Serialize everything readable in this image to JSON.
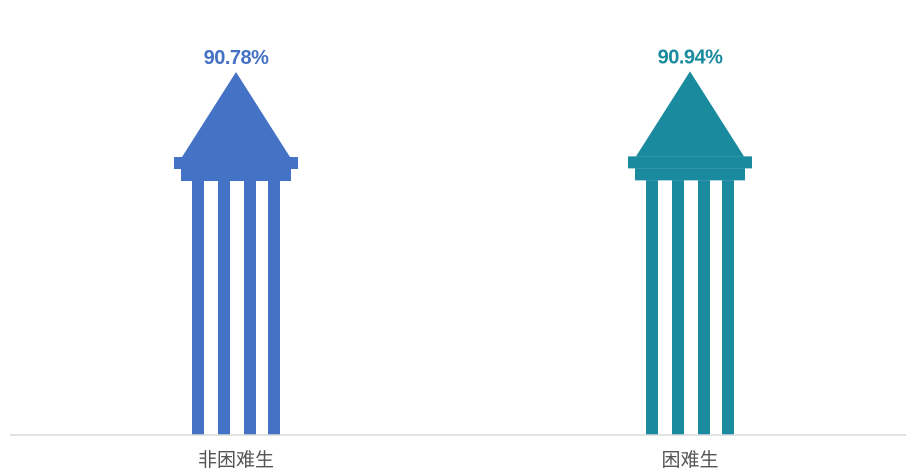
{
  "chart_data": {
    "type": "bar",
    "categories": [
      "非困难生",
      "困难生"
    ],
    "values": [
      90.78,
      90.94
    ],
    "value_labels": [
      "90.78%",
      "90.94%"
    ],
    "colors": [
      "#4472C4",
      "#1A8A9E"
    ],
    "title": "",
    "xlabel": "",
    "ylabel": "",
    "unit": "%",
    "grid": false,
    "legend": "none",
    "ylim": [
      0,
      100
    ]
  }
}
